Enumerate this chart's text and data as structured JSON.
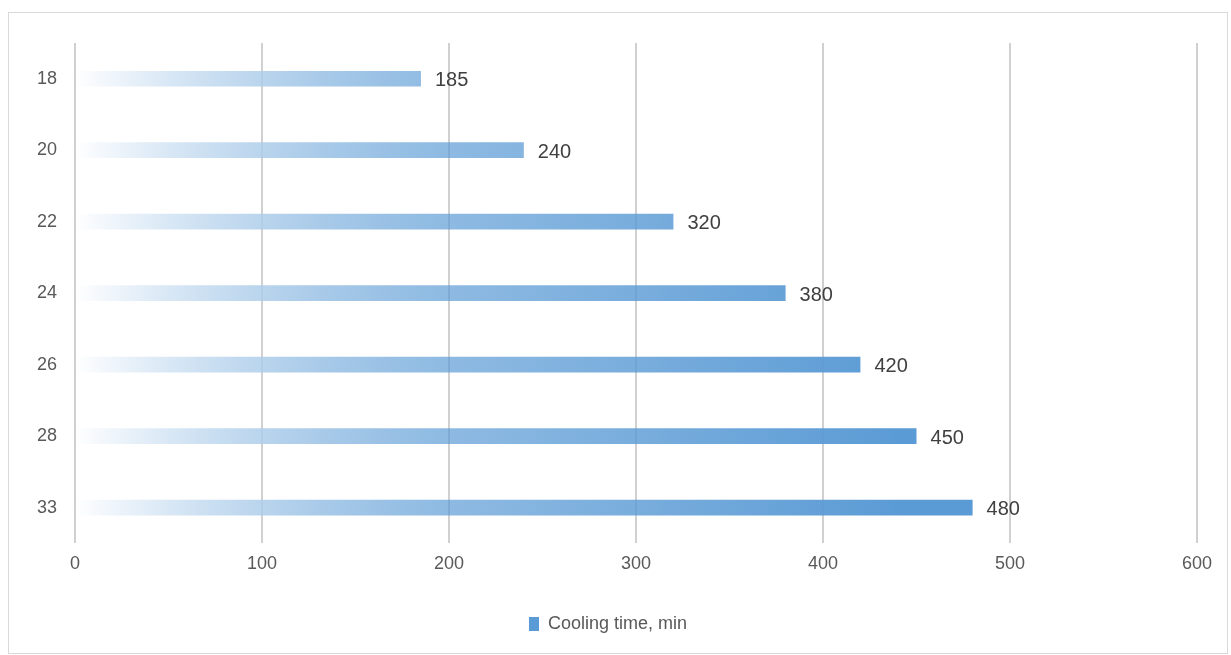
{
  "chart_data": {
    "type": "bar",
    "orientation": "horizontal",
    "categories": [
      "18",
      "20",
      "22",
      "24",
      "26",
      "28",
      "33"
    ],
    "series": [
      {
        "name": "Cooling time, min",
        "color": "#5b9bd5",
        "values": [
          185,
          240,
          320,
          380,
          420,
          450,
          480
        ]
      }
    ],
    "xlim": [
      0,
      600
    ],
    "xticks": [
      0,
      100,
      200,
      300,
      400,
      500,
      600
    ],
    "grid": "x",
    "legend": "bottom",
    "data_labels": true
  }
}
